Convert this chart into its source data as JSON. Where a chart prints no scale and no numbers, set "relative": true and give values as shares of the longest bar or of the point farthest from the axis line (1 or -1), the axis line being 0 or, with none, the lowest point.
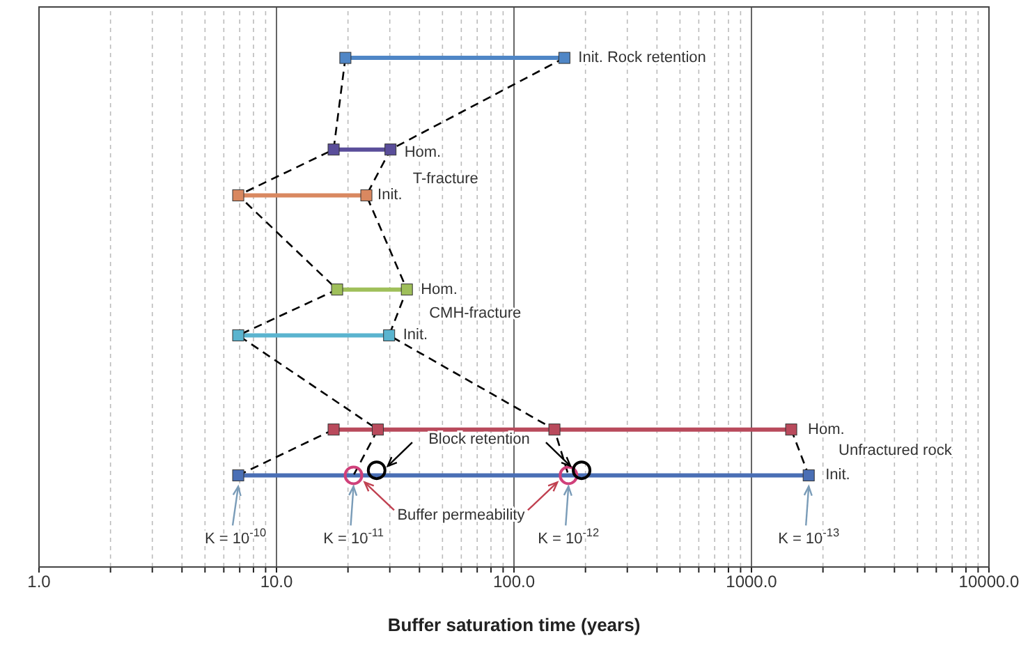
{
  "chart_data": {
    "type": "line",
    "relative": true,
    "xlabel": "Buffer saturation time (years)",
    "log": "x",
    "grid": "x",
    "marker": "square",
    "tick_labels": "x",
    "xlim": [
      1,
      10000
    ],
    "xticks": [
      {
        "value": 1,
        "label": "1.0"
      },
      {
        "value": 2,
        "label": null
      },
      {
        "value": 3,
        "label": null
      },
      {
        "value": 4,
        "label": null
      },
      {
        "value": 5,
        "label": null
      },
      {
        "value": 6,
        "label": null
      },
      {
        "value": 7,
        "label": null
      },
      {
        "value": 8,
        "label": null
      },
      {
        "value": 9,
        "label": null
      },
      {
        "value": 10,
        "label": "10.0"
      },
      {
        "value": 20,
        "label": null
      },
      {
        "value": 30,
        "label": null
      },
      {
        "value": 40,
        "label": null
      },
      {
        "value": 50,
        "label": null
      },
      {
        "value": 60,
        "label": null
      },
      {
        "value": 70,
        "label": null
      },
      {
        "value": 80,
        "label": null
      },
      {
        "value": 90,
        "label": null
      },
      {
        "value": 100,
        "label": "100.0"
      },
      {
        "value": 200,
        "label": null
      },
      {
        "value": 300,
        "label": null
      },
      {
        "value": 400,
        "label": null
      },
      {
        "value": 500,
        "label": null
      },
      {
        "value": 600,
        "label": null
      },
      {
        "value": 700,
        "label": null
      },
      {
        "value": 800,
        "label": null
      },
      {
        "value": 900,
        "label": null
      },
      {
        "value": 1000,
        "label": "1000.0"
      },
      {
        "value": 2000,
        "label": null
      },
      {
        "value": 3000,
        "label": null
      },
      {
        "value": 4000,
        "label": null
      },
      {
        "value": 5000,
        "label": null
      },
      {
        "value": 6000,
        "label": null
      },
      {
        "value": 7000,
        "label": null
      },
      {
        "value": 8000,
        "label": null
      },
      {
        "value": 9000,
        "label": null
      },
      {
        "value": 10000,
        "label": "10000.0"
      }
    ],
    "series": [
      {
        "color": "#4f86c6",
        "x": [
          19.5,
          163
        ],
        "values": [
          1,
          1
        ]
      },
      {
        "color": "#5a4e9a",
        "x": [
          17.4,
          30.2
        ],
        "values": [
          0.82,
          0.82
        ]
      },
      {
        "color": "#d98860",
        "x": [
          6.9,
          23.9
        ],
        "values": [
          0.73,
          0.73
        ]
      },
      {
        "color": "#9fbf5a",
        "x": [
          18,
          35.4
        ],
        "values": [
          0.545,
          0.545
        ]
      },
      {
        "color": "#5ab4cf",
        "x": [
          6.9,
          29.8
        ],
        "values": [
          0.455,
          0.455
        ]
      },
      {
        "color": "#b94a5c",
        "x": [
          17.4,
          26.7,
          148,
          1470
        ],
        "values": [
          0.27,
          0.27,
          0.27,
          0.27
        ]
      },
      {
        "color": "#4a6fb5",
        "x": [
          6.9,
          1742
        ],
        "values": [
          0.18,
          0.18
        ]
      },
      {
        "color": "#000000",
        "line_style": "dashed",
        "marker": "none",
        "x": [
          19.5,
          17.4,
          6.9,
          18,
          6.9,
          26.7,
          21.1
        ],
        "values": [
          1,
          0.82,
          0.73,
          0.545,
          0.455,
          0.27,
          0.18
        ]
      },
      {
        "color": "#000000",
        "line_style": "dashed",
        "marker": "none",
        "x": [
          163,
          30.2,
          23.9,
          35.4,
          29.8,
          148,
          169.6
        ],
        "values": [
          1,
          0.82,
          0.73,
          0.545,
          0.455,
          0.27,
          0.18
        ]
      },
      {
        "color": "#000000",
        "line_style": "dashed",
        "marker": "none",
        "x": [
          17.4,
          6.9
        ],
        "values": [
          0.27,
          0.18
        ]
      },
      {
        "color": "#000000",
        "line_style": "dashed",
        "marker": "none",
        "x": [
          1470,
          1742
        ],
        "values": [
          0.27,
          0.18
        ]
      },
      {
        "type": "scatter",
        "name": "Buffer permeability",
        "color": "#d0407a",
        "marker": "circle",
        "x": [
          21.1,
          169.6
        ],
        "values": [
          0.18,
          0.18
        ]
      },
      {
        "type": "scatter",
        "name": "Block retention",
        "color": "#000000",
        "marker": "circle",
        "x": [
          26.4,
          192.6
        ],
        "values": [
          0.19,
          0.19
        ]
      }
    ],
    "annotations": [
      "Init. Rock retention",
      "Hom.",
      "T-fracture",
      "Init.",
      "Hom.",
      "CMH-fracture",
      "Init.",
      "Hom.",
      "Unfractured rock",
      "Init.",
      "K = 10$^{-10}$",
      "K = 10$^{-11}$",
      "K = 10$^{-12}$",
      "K = 10$^{-13}$"
    ]
  }
}
